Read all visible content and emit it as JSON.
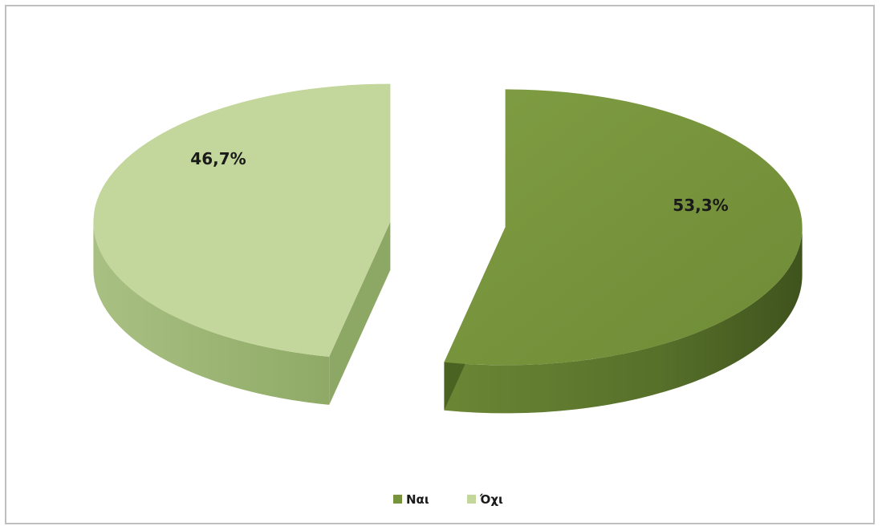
{
  "chart_data": {
    "type": "pie",
    "style": "3d-exploded",
    "categories": [
      "Ναι",
      "Όχι"
    ],
    "values": [
      53.3,
      46.7
    ],
    "data_labels": [
      "53,3%",
      "46,7%"
    ],
    "colors": [
      "#77933c",
      "#c3d69b"
    ],
    "legend": {
      "position": "bottom",
      "entries": [
        "Ναι",
        "Όχι"
      ]
    },
    "title": ""
  }
}
